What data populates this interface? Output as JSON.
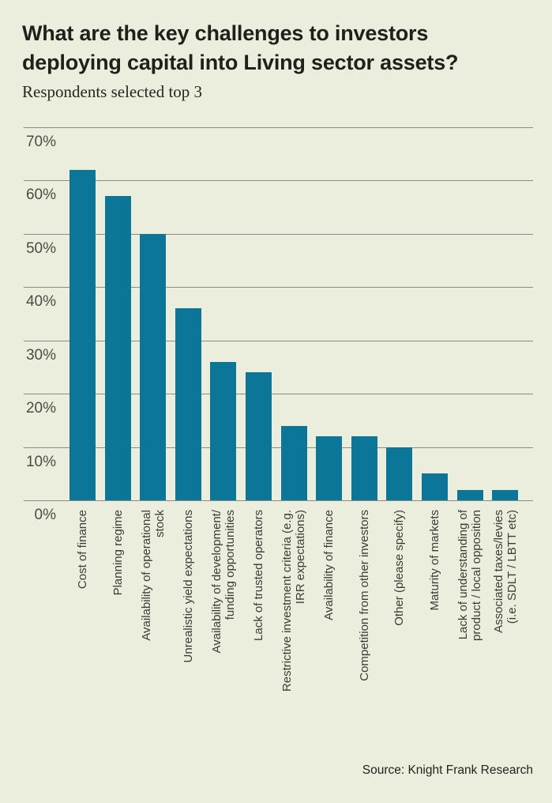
{
  "header": {
    "title_line1": "What are the key challenges to investors",
    "title_line2": "deploying capital into Living sector assets?",
    "subtitle": "Respondents selected top 3"
  },
  "footer": {
    "source": "Source: Knight Frank Research"
  },
  "colors": {
    "background": "#ebeedd",
    "bar": "#0b7697",
    "gridline": "#8b8d84",
    "title_text": "#1f201a",
    "axis_tick_text": "#4b4c44",
    "category_text": "#3b3c35",
    "source_text": "#22231d"
  },
  "chart_data": {
    "type": "bar",
    "title": "What are the key challenges to investors deploying capital into Living sector assets?",
    "subtitle": "Respondents selected top 3",
    "unit": "%",
    "categories": [
      "Cost of finance",
      "Planning regime",
      "Availability of operational stock",
      "Unrealistic yield expectations",
      "Availability of development/ funding opportunities",
      "Lack of trusted operators",
      "Restrictive investment criteria (e.g. IRR expectations)",
      "Availability of finance",
      "Competition from other investors",
      "Other (please specify)",
      "Maturity of markets",
      "Lack of understanding of product / local opposition",
      "Associated taxes/levies (i.e. SDLT / LBTT etc)"
    ],
    "category_lines": [
      [
        "Cost of finance"
      ],
      [
        "Planning regime"
      ],
      [
        "Availability of operational",
        "stock"
      ],
      [
        "Unrealistic yield expectations"
      ],
      [
        "Availability of development/",
        "funding opportunities"
      ],
      [
        "Lack of trusted operators"
      ],
      [
        "Restrictive investment criteria (e.g.",
        "IRR expectations)"
      ],
      [
        "Availability of finance"
      ],
      [
        "Competition from other investors"
      ],
      [
        "Other (please specify)"
      ],
      [
        "Maturity of markets"
      ],
      [
        "Lack of understanding of",
        "product / local opposition"
      ],
      [
        "Associated taxes/levies",
        "(i.e. SDLT / LBTT etc)"
      ]
    ],
    "values": [
      62,
      57,
      50,
      36,
      26,
      24,
      14,
      12,
      12,
      10,
      5,
      2,
      2
    ],
    "y_ticks": [
      {
        "value": 70,
        "label": "70%"
      },
      {
        "value": 60,
        "label": "60%"
      },
      {
        "value": 50,
        "label": "50%"
      },
      {
        "value": 40,
        "label": "40%"
      },
      {
        "value": 30,
        "label": "30%"
      },
      {
        "value": 20,
        "label": "20%"
      },
      {
        "value": 10,
        "label": "10%"
      },
      {
        "value": 0,
        "label": "0%"
      }
    ],
    "ylim": [
      0,
      70
    ],
    "xlabel": "",
    "ylabel": "",
    "grid": true,
    "legend": false,
    "source": "Source: Knight Frank Research"
  }
}
